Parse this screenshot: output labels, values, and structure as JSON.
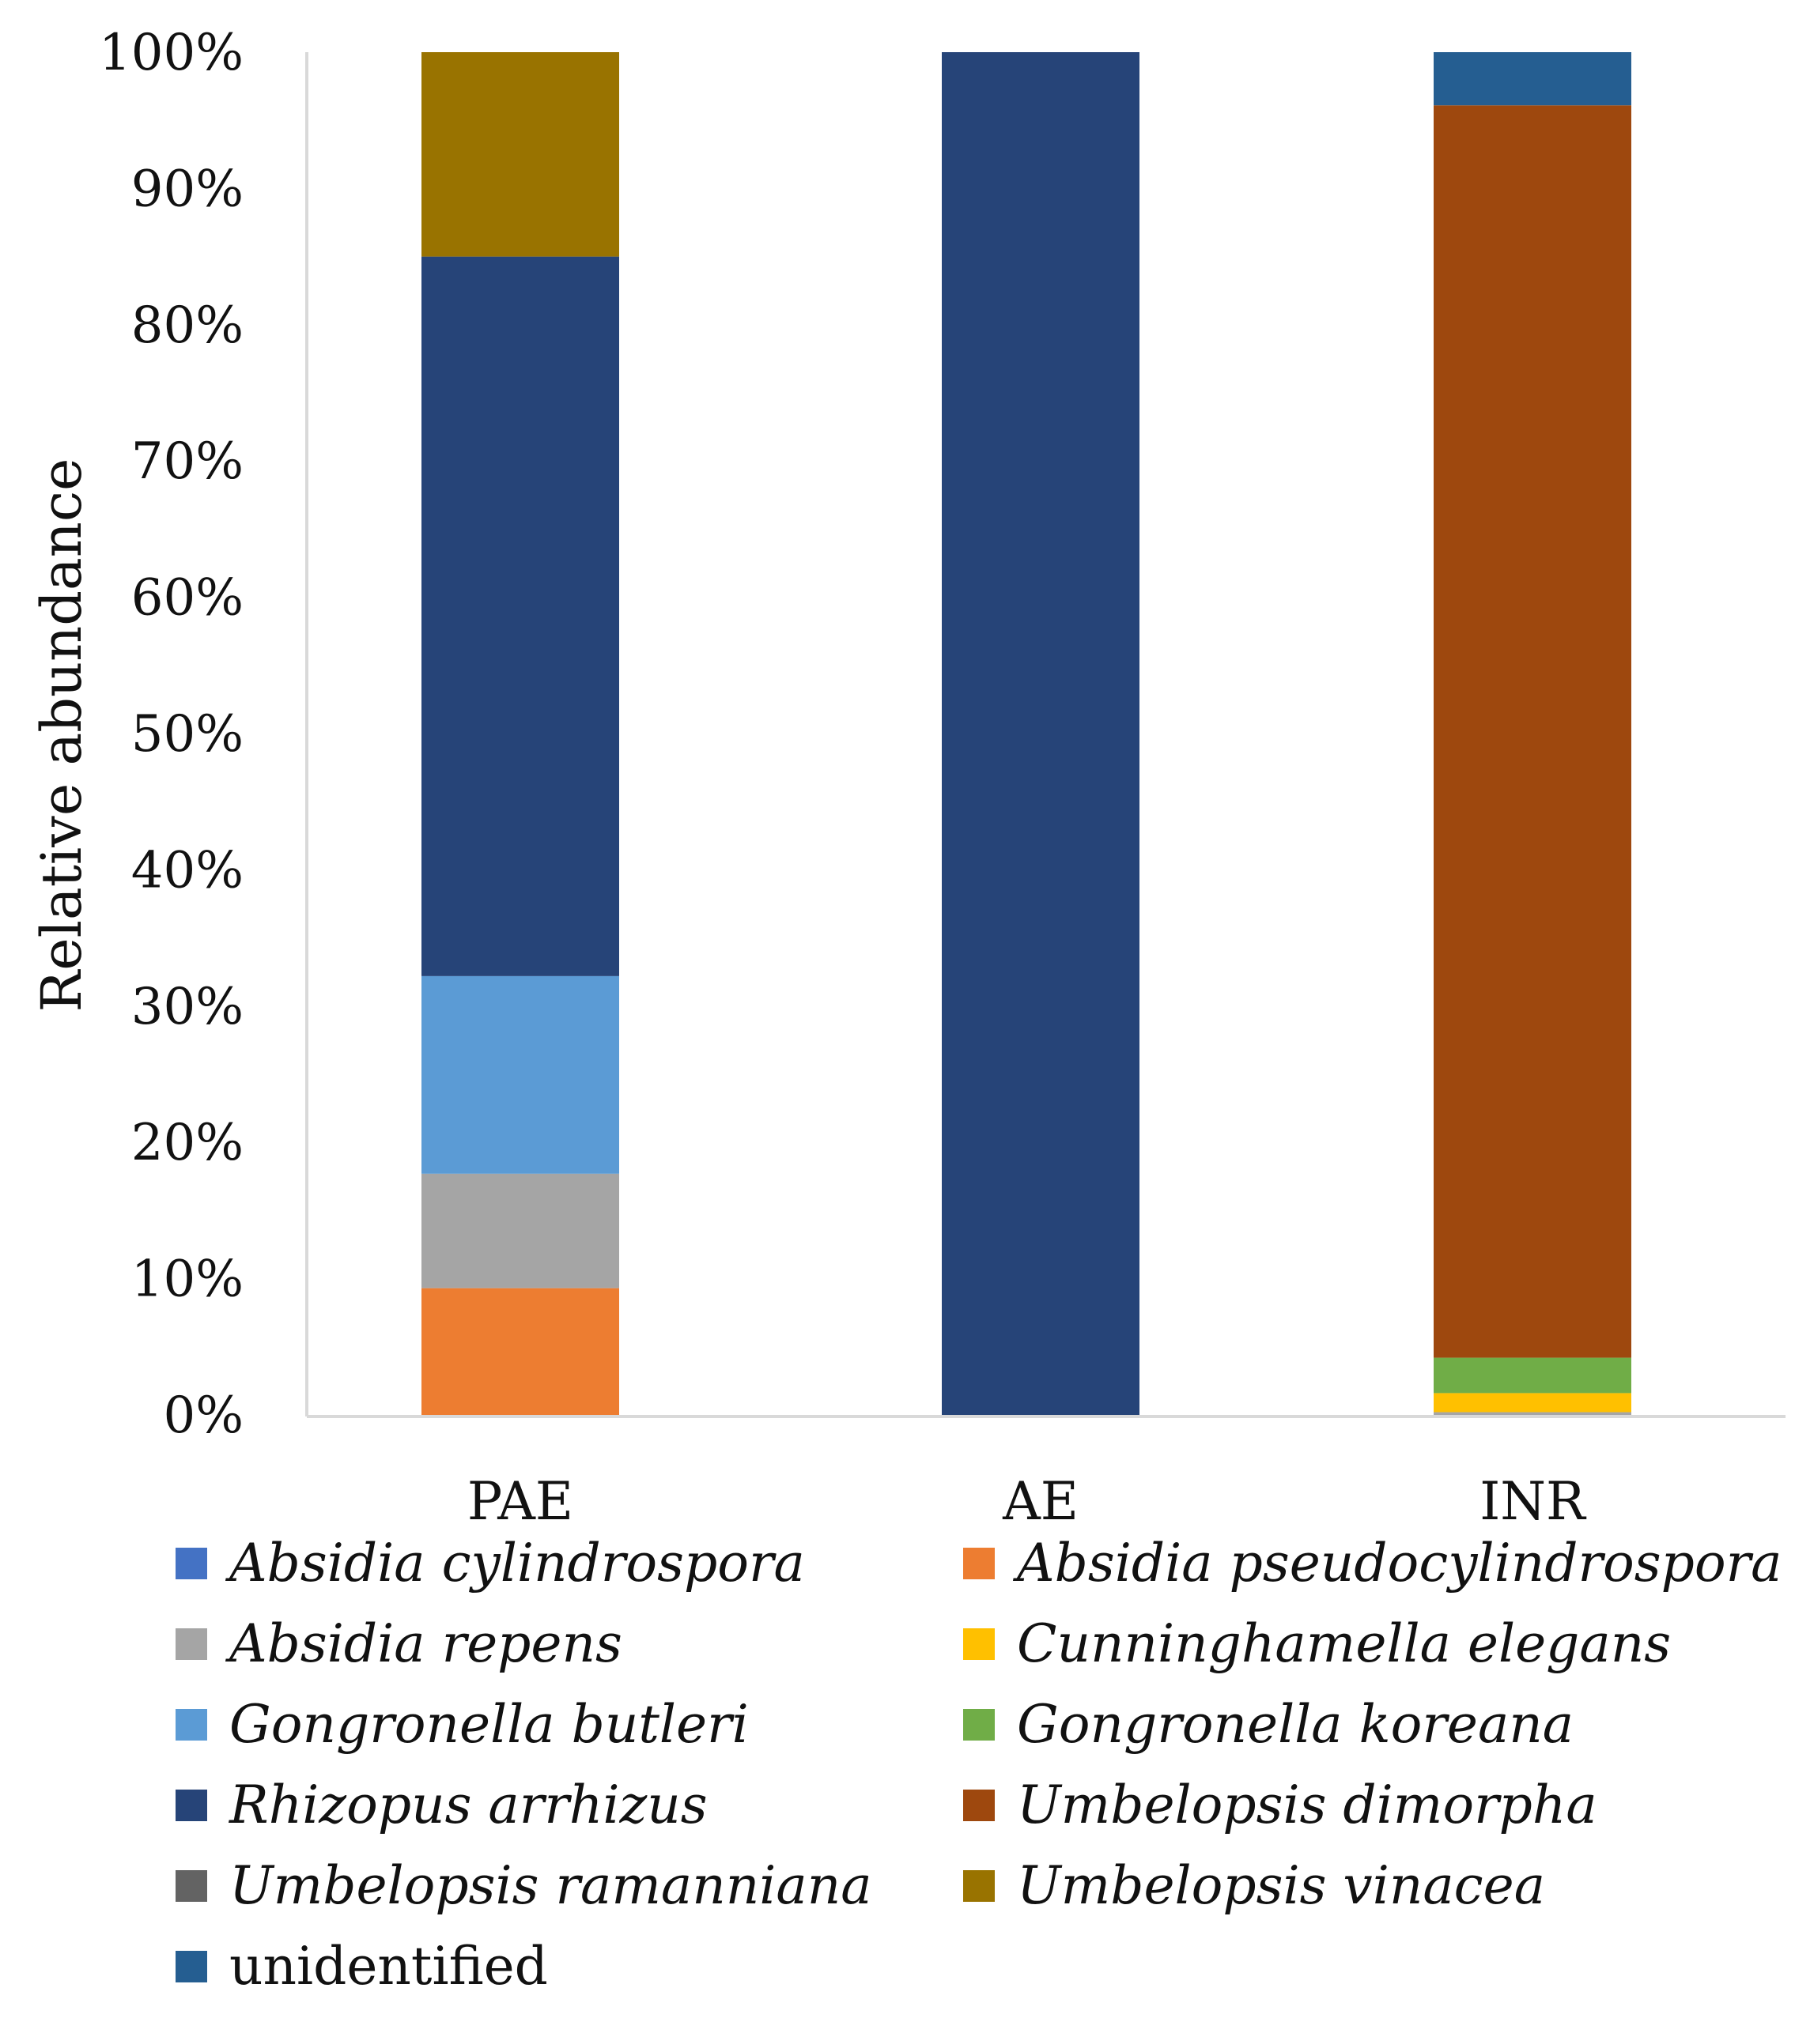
{
  "chart_data": {
    "type": "bar",
    "stacked": true,
    "title": "",
    "xlabel": "",
    "ylabel": "Relative abundance",
    "ylim": [
      0,
      100
    ],
    "yticks": [
      "0%",
      "10%",
      "20%",
      "30%",
      "40%",
      "50%",
      "60%",
      "70%",
      "80%",
      "90%",
      "100%"
    ],
    "categories": [
      "PAE",
      "AE",
      "INR"
    ],
    "series": [
      {
        "name": "Absidia cylindrospora",
        "italic": true,
        "color": "#4472C4",
        "values": [
          0,
          0,
          0
        ]
      },
      {
        "name": "Absidia pseudocylindrospora",
        "italic": true,
        "color": "#ED7D31",
        "values": [
          9.3,
          0,
          0
        ]
      },
      {
        "name": "Absidia repens",
        "italic": true,
        "color": "#A5A5A5",
        "values": [
          8.4,
          0,
          0.2
        ]
      },
      {
        "name": "Cunninghamella elegans",
        "italic": true,
        "color": "#FFC000",
        "values": [
          0,
          0,
          1.4
        ]
      },
      {
        "name": "Gongronella butleri",
        "italic": true,
        "color": "#5B9BD5",
        "values": [
          14.5,
          0,
          0
        ]
      },
      {
        "name": "Gongronella koreana",
        "italic": true,
        "color": "#70AD47",
        "values": [
          0,
          0,
          2.6
        ]
      },
      {
        "name": "Rhizopus arrhizus",
        "italic": true,
        "color": "#264478",
        "values": [
          52.8,
          100,
          0
        ]
      },
      {
        "name": "Umbelopsis dimorpha",
        "italic": true,
        "color": "#9E480E",
        "values": [
          0,
          0,
          91.9
        ]
      },
      {
        "name": "Umbelopsis ramanniana",
        "italic": true,
        "color": "#636363",
        "values": [
          0,
          0,
          0
        ]
      },
      {
        "name": "Umbelopsis vinacea",
        "italic": true,
        "color": "#997300",
        "values": [
          15.0,
          0,
          0
        ]
      },
      {
        "name": "unidentified",
        "italic": false,
        "color": "#255E91",
        "values": [
          0,
          0,
          3.9
        ]
      }
    ],
    "legend_position": "bottom",
    "grid": false,
    "axis_color": "#D9D9D9"
  }
}
